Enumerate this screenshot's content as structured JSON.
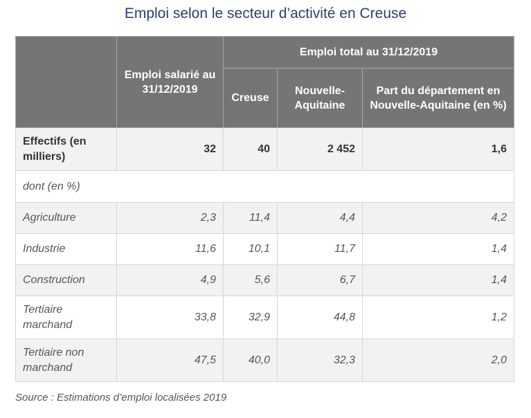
{
  "title": "Emploi selon le secteur d’activité en Creuse",
  "table": {
    "header": {
      "emploi_salarie": "Emploi salarié au 31/12/2019",
      "emploi_total": "Emploi total au 31/12/2019",
      "creuse": "Creuse",
      "nouvelle_aquitaine": "Nouvelle-Aquitaine",
      "part": "Part du département en Nouvelle-Aquitaine (en %)"
    },
    "effectifs": {
      "label": "Effectifs (en milliers)",
      "values": [
        "32",
        "40",
        "2 452",
        "1,6"
      ]
    },
    "dont_label": "dont (en %)",
    "rows": [
      {
        "label": "Agriculture",
        "values": [
          "2,3",
          "11,4",
          "4,4",
          "4,2"
        ]
      },
      {
        "label": "Industrie",
        "values": [
          "11,6",
          "10,1",
          "11,7",
          "1,4"
        ]
      },
      {
        "label": "Construction",
        "values": [
          "4,9",
          "5,6",
          "6,7",
          "1,4"
        ]
      },
      {
        "label": "Tertiaire marchand",
        "values": [
          "33,8",
          "32,9",
          "44,8",
          "1,2"
        ]
      },
      {
        "label": "Tertiaire non marchand",
        "values": [
          "47,5",
          "40,0",
          "32,3",
          "2,0"
        ]
      }
    ]
  },
  "source": "Source : Estimations d’emploi localisées 2019"
}
